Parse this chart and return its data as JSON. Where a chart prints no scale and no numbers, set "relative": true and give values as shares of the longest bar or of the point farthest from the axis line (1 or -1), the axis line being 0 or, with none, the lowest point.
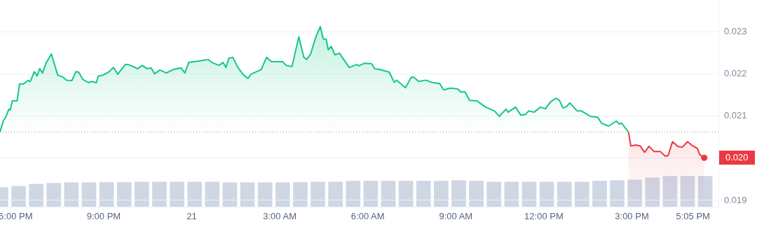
{
  "chart_data": [
    {
      "type": "area",
      "xlim": [
        "--01-20T17:28",
        "--01-21T17:57"
      ],
      "ylim": [
        0.01885,
        0.02375
      ],
      "xticks": [
        {
          "value": "--01-20T18:00",
          "label": "6:00 PM"
        },
        {
          "value": "--01-20T21:00",
          "label": "9:00 PM"
        },
        {
          "value": "--01-21T00:00",
          "label": "21"
        },
        {
          "value": "--01-21T03:00",
          "label": "3:00 AM"
        },
        {
          "value": "--01-21T06:00",
          "label": "6:00 AM"
        },
        {
          "value": "--01-21T09:00",
          "label": "9:00 AM"
        },
        {
          "value": "--01-21T12:00",
          "label": "12:00 PM"
        },
        {
          "value": "--01-21T15:00",
          "label": "3:00 PM"
        },
        {
          "value": "--01-21T17:05",
          "label": "5:05 PM"
        }
      ],
      "yticks": [
        {
          "value": 0.019,
          "label": "0.019"
        },
        {
          "value": 0.02,
          "label": null
        },
        {
          "value": 0.021,
          "label": "0.021"
        },
        {
          "value": 0.022,
          "label": "0.022"
        },
        {
          "value": 0.023,
          "label": "0.023"
        }
      ],
      "grid": "y",
      "legend": false,
      "marker": "none",
      "line_style": "solid",
      "series": [
        {
          "color": "#16c784",
          "x": [
            "--01-20T17:28",
            "--01-20T17:35",
            "--01-20T17:40",
            "--01-20T17:46",
            "--01-20T17:49",
            "--01-20T17:53",
            "--01-20T18:03",
            "--01-20T18:08",
            "--01-20T18:16",
            "--01-20T18:25",
            "--01-20T18:30",
            "--01-20T18:38",
            "--01-20T18:44",
            "--01-20T18:49",
            "--01-20T18:55",
            "--01-20T19:02",
            "--01-20T19:13",
            "--01-20T19:26",
            "--01-20T19:37",
            "--01-20T19:44",
            "--01-20T19:55",
            "--01-20T20:03",
            "--01-20T20:09",
            "--01-20T20:17",
            "--01-20T20:29",
            "--01-20T20:35",
            "--01-20T20:45",
            "--01-20T20:49",
            "--01-20T20:59",
            "--01-20T21:11",
            "--01-20T21:20",
            "--01-20T21:29",
            "--01-20T21:44",
            "--01-20T21:50",
            "--01-20T22:01",
            "--01-20T22:09",
            "--01-20T22:19",
            "--01-20T22:29",
            "--01-20T22:37",
            "--01-20T22:44",
            "--01-20T22:55",
            "--01-20T23:08",
            "--01-20T23:22",
            "--01-20T23:38",
            "--01-20T23:46",
            "--01-20T23:54",
            "--01-21T00:05",
            "--01-21T00:14",
            "--01-21T00:34",
            "--01-21T00:41",
            "--01-21T00:56",
            "--01-21T01:04",
            "--01-21T01:10",
            "--01-21T01:16",
            "--01-21T01:24",
            "--01-21T01:35",
            "--01-21T01:46",
            "--01-21T01:55",
            "--01-21T02:01",
            "--01-21T02:22",
            "--01-21T02:33",
            "--01-21T02:43",
            "--01-21T03:06",
            "--01-21T03:13",
            "--01-21T03:25",
            "--01-21T03:39",
            "--01-21T03:49",
            "--01-21T03:55",
            "--01-21T04:03",
            "--01-21T04:14",
            "--01-21T04:23",
            "--01-21T04:29",
            "--01-21T04:35",
            "--01-21T04:39",
            "--01-21T04:45",
            "--01-21T04:53",
            "--01-21T05:02",
            "--01-21T05:22",
            "--01-21T05:37",
            "--01-21T05:42",
            "--01-21T05:53",
            "--01-21T06:08",
            "--01-21T06:14",
            "--01-21T06:25",
            "--01-21T06:44",
            "--01-21T06:54",
            "--01-21T06:59",
            "--01-21T07:17",
            "--01-21T07:29",
            "--01-21T07:34",
            "--01-21T07:44",
            "--01-21T07:59",
            "--01-21T08:10",
            "--01-21T08:27",
            "--01-21T08:35",
            "--01-21T08:49",
            "--01-21T09:04",
            "--01-21T09:10",
            "--01-21T09:19",
            "--01-21T09:28",
            "--01-21T09:43",
            "--01-21T10:01",
            "--01-21T10:19",
            "--01-21T10:29",
            "--01-21T10:34",
            "--01-21T10:43",
            "--01-21T10:47",
            "--01-21T11:02",
            "--01-21T11:13",
            "--01-21T11:23",
            "--01-21T11:29",
            "--01-21T11:40",
            "--01-21T11:53",
            "--01-21T12:03",
            "--01-21T12:14",
            "--01-21T12:25",
            "--01-21T12:32",
            "--01-21T12:39",
            "--01-21T12:46",
            "--01-21T12:53",
            "--01-21T13:08",
            "--01-21T13:17",
            "--01-21T13:35",
            "--01-21T13:50",
            "--01-21T13:58",
            "--01-21T14:12",
            "--01-21T14:19",
            "--01-21T14:28",
            "--01-21T14:34",
            "--01-21T14:39",
            "--01-21T14:53"
          ],
          "values": [
            0.02062,
            0.02089,
            0.02098,
            0.02116,
            0.02114,
            0.02136,
            0.02136,
            0.02176,
            0.02176,
            0.02184,
            0.02182,
            0.02205,
            0.02195,
            0.02212,
            0.02202,
            0.02225,
            0.02247,
            0.02197,
            0.02192,
            0.02185,
            0.02184,
            0.02205,
            0.02204,
            0.02187,
            0.02179,
            0.02182,
            0.02179,
            0.02195,
            0.02197,
            0.02205,
            0.02215,
            0.02199,
            0.02222,
            0.02222,
            0.02217,
            0.02212,
            0.0222,
            0.02212,
            0.02214,
            0.022,
            0.02209,
            0.02202,
            0.0221,
            0.02214,
            0.02202,
            0.02227,
            0.02229,
            0.0223,
            0.02234,
            0.02227,
            0.0222,
            0.02227,
            0.02215,
            0.02237,
            0.02239,
            0.02214,
            0.02197,
            0.02189,
            0.02199,
            0.0221,
            0.02239,
            0.02229,
            0.02229,
            0.0222,
            0.02217,
            0.02288,
            0.0224,
            0.02234,
            0.02247,
            0.02288,
            0.02312,
            0.02283,
            0.02282,
            0.02257,
            0.02265,
            0.02245,
            0.02249,
            0.02215,
            0.02222,
            0.02219,
            0.02225,
            0.02224,
            0.02212,
            0.0221,
            0.02204,
            0.0218,
            0.02185,
            0.02167,
            0.02192,
            0.02192,
            0.02182,
            0.02185,
            0.0218,
            0.02177,
            0.02162,
            0.02166,
            0.02164,
            0.02157,
            0.02157,
            0.02137,
            0.02136,
            0.02121,
            0.02112,
            0.02099,
            0.02106,
            0.02116,
            0.02109,
            0.02121,
            0.02102,
            0.02104,
            0.02112,
            0.02109,
            0.02121,
            0.02117,
            0.02134,
            0.02142,
            0.02137,
            0.02119,
            0.02122,
            0.02131,
            0.02112,
            0.02112,
            0.02099,
            0.02097,
            0.02083,
            0.02076,
            0.02081,
            0.02088,
            0.02081,
            0.02083,
            0.02062
          ]
        },
        {
          "color": "#ea3943",
          "x": [
            "--01-21T14:53",
            "--01-21T14:58",
            "--01-21T15:08",
            "--01-21T15:17",
            "--01-21T15:26",
            "--01-21T15:35",
            "--01-21T15:45",
            "--01-21T15:58",
            "--01-21T16:08",
            "--01-21T16:14",
            "--01-21T16:23",
            "--01-21T16:34",
            "--01-21T16:43",
            "--01-21T16:54",
            "--01-21T17:02",
            "--01-21T17:14",
            "--01-21T17:19",
            "--01-21T17:28"
          ],
          "values": [
            0.02062,
            0.02029,
            0.02031,
            0.02029,
            0.02014,
            0.02028,
            0.02016,
            0.02016,
            0.02005,
            0.02006,
            0.02039,
            0.02028,
            0.02026,
            0.02039,
            0.02031,
            0.02023,
            0.02008,
            0.02001
          ]
        }
      ],
      "ref_lines": [
        {
          "axis": "y",
          "value": 0.02062,
          "color": "#a0a7b4",
          "line_style": "dotted"
        }
      ],
      "annotations": [
        {
          "text": "0.020",
          "x": "--01-21T17:28",
          "y": 0.02001
        }
      ]
    },
    {
      "type": "bar",
      "relative": true,
      "tick_labels": false,
      "color": "#cfd6e4",
      "xlim": [
        "--01-20T17:28",
        "--01-21T17:57"
      ],
      "x": [
        "--01-20T17:30",
        "--01-20T18:06",
        "--01-20T18:42",
        "--01-20T19:18",
        "--01-20T19:54",
        "--01-20T20:30",
        "--01-20T21:06",
        "--01-20T21:42",
        "--01-20T22:18",
        "--01-20T22:54",
        "--01-20T23:30",
        "--01-21T00:06",
        "--01-21T00:42",
        "--01-21T01:18",
        "--01-21T01:54",
        "--01-21T02:30",
        "--01-21T03:06",
        "--01-21T03:42",
        "--01-21T04:18",
        "--01-21T04:54",
        "--01-21T05:30",
        "--01-21T06:06",
        "--01-21T06:42",
        "--01-21T07:18",
        "--01-21T07:54",
        "--01-21T08:30",
        "--01-21T09:06",
        "--01-21T09:42",
        "--01-21T10:18",
        "--01-21T10:54",
        "--01-21T11:30",
        "--01-21T12:06",
        "--01-21T12:42",
        "--01-21T13:18",
        "--01-21T13:54",
        "--01-21T14:30",
        "--01-21T15:06",
        "--01-21T15:42",
        "--01-21T16:18",
        "--01-21T16:54",
        "--01-21T17:30"
      ],
      "values": [
        0.63,
        0.67,
        0.74,
        0.77,
        0.79,
        0.79,
        0.8,
        0.8,
        0.81,
        0.81,
        0.81,
        0.81,
        0.81,
        0.79,
        0.79,
        0.79,
        0.79,
        0.8,
        0.81,
        0.81,
        0.84,
        0.84,
        0.84,
        0.84,
        0.84,
        0.84,
        0.86,
        0.84,
        0.81,
        0.81,
        0.81,
        0.81,
        0.81,
        0.81,
        0.84,
        0.86,
        0.88,
        0.95,
        1,
        1,
        1
      ]
    }
  ]
}
